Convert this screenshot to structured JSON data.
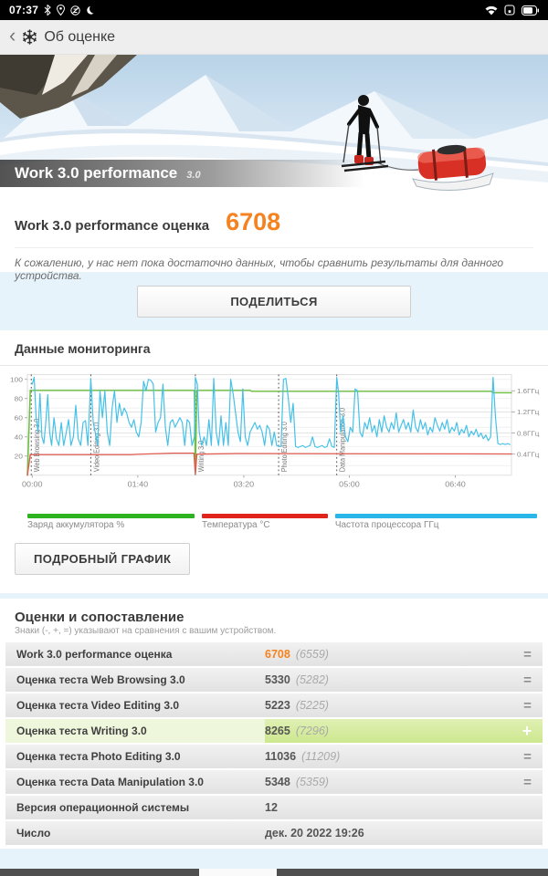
{
  "status_bar": {
    "time": "07:37",
    "left_icons": [
      "bluetooth-icon",
      "location-icon",
      "mute-icon",
      "night-mode-icon"
    ],
    "right_icons": [
      "wifi-icon",
      "sim-icon",
      "battery-icon"
    ]
  },
  "app_bar": {
    "back": "‹",
    "title": "Об оценке"
  },
  "banner": {
    "title": "Work 3.0 performance",
    "version": "3.0"
  },
  "score": {
    "label": "Work 3.0 performance оценка",
    "value": "6708",
    "note": "К сожалению, у нас нет пока достаточно данных, чтобы сравнить результаты для данного устройства."
  },
  "share_button": "ПОДЕЛИТЬСЯ",
  "monitoring": {
    "title": "Данные мониторинга",
    "detail_button": "ПОДРОБНЫЙ ГРАФИК",
    "legend": [
      {
        "label": "Заряд аккумулятора %",
        "color": "#2db31f",
        "grow": 170
      },
      {
        "label": "Температура °C",
        "color": "#e0241c",
        "grow": 140
      },
      {
        "label": "Частота процессора ГГц",
        "color": "#29b6e8",
        "grow": 238
      }
    ]
  },
  "chart_data": {
    "type": "line",
    "title": "Данные мониторинга",
    "x_ticks": [
      "00:00",
      "01:40",
      "03:20",
      "05:00",
      "06:40"
    ],
    "x_tick_pos": [
      10,
      228,
      447,
      665,
      884
    ],
    "y_left": {
      "ticks": [
        20,
        40,
        60,
        80,
        100
      ],
      "range": [
        0,
        105
      ]
    },
    "y_right": {
      "labels": [
        "0.4ГГц",
        "0.8ГГц",
        "1.2ГГц",
        "1.6ГГц"
      ],
      "values": [
        22,
        44,
        66,
        88
      ]
    },
    "phases": [
      {
        "label": "Web Browsing 3.0",
        "x": 8
      },
      {
        "label": "Video Editing 3.0",
        "x": 131
      },
      {
        "label": "Writing 3.0",
        "x": 347
      },
      {
        "label": "Photo Editing 3.0",
        "x": 519
      },
      {
        "label": "Data Manipulation 3.0",
        "x": 639
      }
    ],
    "series": [
      {
        "name": "Заряд аккумулятора %",
        "color": "#6cbf3f",
        "width": 1.5,
        "points": [
          0,
          0,
          6,
          88.5,
          345,
          88.5,
          347,
          3,
          350,
          88.5,
          460,
          88.5,
          463,
          87.5,
          958,
          87.5,
          962,
          86,
          1000,
          86
        ]
      },
      {
        "name": "Температура °C",
        "color": "#e15b50",
        "width": 1.4,
        "points": [
          0,
          0,
          6,
          21.5,
          215,
          21.5,
          225,
          21.8,
          300,
          23,
          344,
          23,
          347,
          1,
          350,
          22,
          430,
          22.6,
          1000,
          22.2
        ]
      },
      {
        "name": "Частота процессора ГГц",
        "color": "#45c1e8",
        "width": 1.2,
        "points": [
          10,
          95,
          14,
          102,
          18,
          60,
          22,
          45,
          26,
          85,
          30,
          40,
          34,
          33,
          38,
          55,
          42,
          84,
          46,
          45,
          50,
          31,
          55,
          60,
          60,
          38,
          65,
          31,
          70,
          55,
          75,
          31,
          80,
          44,
          85,
          58,
          90,
          31,
          95,
          40,
          100,
          73,
          105,
          38,
          110,
          31,
          115,
          55,
          120,
          57,
          125,
          31,
          131,
          101,
          136,
          55,
          140,
          45,
          145,
          31,
          150,
          88,
          155,
          60,
          160,
          88,
          165,
          45,
          170,
          31,
          175,
          70,
          180,
          88,
          185,
          55,
          190,
          75,
          195,
          62,
          200,
          70,
          205,
          65,
          210,
          55,
          215,
          50,
          220,
          58,
          225,
          45,
          230,
          40,
          235,
          55,
          240,
          98,
          245,
          88,
          250,
          100,
          255,
          99,
          260,
          95,
          265,
          45,
          270,
          55,
          275,
          60,
          280,
          95,
          285,
          50,
          290,
          31,
          295,
          55,
          300,
          58,
          305,
          50,
          310,
          55,
          315,
          60,
          320,
          55,
          325,
          31,
          330,
          58,
          335,
          55,
          340,
          31,
          345,
          40,
          347,
          102,
          351,
          95,
          355,
          45,
          360,
          31,
          365,
          40,
          370,
          31,
          375,
          58,
          380,
          31,
          385,
          101,
          390,
          45,
          395,
          31,
          400,
          62,
          405,
          31,
          410,
          55,
          415,
          31,
          420,
          100,
          425,
          85,
          430,
          65,
          435,
          45,
          440,
          35,
          445,
          90,
          450,
          40,
          455,
          31,
          460,
          45,
          465,
          50,
          470,
          55,
          475,
          48,
          480,
          52,
          485,
          45,
          490,
          31,
          495,
          52,
          500,
          48,
          505,
          31,
          510,
          45,
          515,
          31,
          519,
          30,
          524,
          30,
          529,
          100,
          534,
          101,
          539,
          80,
          544,
          55,
          549,
          75,
          554,
          30,
          559,
          29,
          564,
          30,
          569,
          31,
          574,
          29,
          579,
          30,
          584,
          31,
          589,
          40,
          594,
          30,
          599,
          29,
          604,
          30,
          609,
          31,
          614,
          29,
          619,
          30,
          624,
          38,
          629,
          30,
          634,
          29,
          639,
          102,
          643,
          85,
          647,
          45,
          652,
          62,
          657,
          40,
          662,
          35,
          667,
          50,
          672,
          45,
          677,
          90,
          682,
          88,
          687,
          45,
          692,
          40,
          697,
          55,
          702,
          48,
          707,
          60,
          712,
          45,
          717,
          52,
          722,
          40,
          727,
          58,
          732,
          45,
          737,
          62,
          742,
          50,
          747,
          45,
          752,
          55,
          757,
          48,
          762,
          65,
          767,
          45,
          772,
          52,
          777,
          58,
          782,
          48,
          787,
          55,
          792,
          45,
          797,
          68,
          802,
          50,
          807,
          45,
          812,
          58,
          817,
          48,
          822,
          55,
          827,
          42,
          832,
          50,
          837,
          45,
          842,
          60,
          847,
          52,
          852,
          46,
          857,
          55,
          862,
          48,
          867,
          58,
          872,
          44,
          877,
          50,
          882,
          46,
          887,
          55,
          892,
          42,
          897,
          48,
          902,
          44,
          907,
          52,
          912,
          40,
          917,
          46,
          922,
          42,
          927,
          48,
          932,
          40,
          937,
          44,
          942,
          38,
          947,
          42,
          952,
          36,
          957,
          40,
          962,
          102,
          967,
          60,
          972,
          33,
          977,
          32,
          982,
          33,
          987,
          32,
          992,
          33,
          997,
          32
        ]
      }
    ]
  },
  "comparison": {
    "title": "Оценки и сопоставление",
    "subtitle": "Знаки (-, +, =) указывают на сравнения с вашим устройством.",
    "rows": [
      {
        "label": "Work 3.0 performance оценка",
        "value": "6708",
        "compare": "(6559)",
        "badge": "=",
        "orange": true
      },
      {
        "label": "Оценка теста Web Browsing 3.0",
        "value": "5330",
        "compare": "(5282)",
        "badge": "="
      },
      {
        "label": "Оценка теста Video Editing 3.0",
        "value": "5223",
        "compare": "(5225)",
        "badge": "="
      },
      {
        "label": "Оценка теста Writing 3.0",
        "value": "8265",
        "compare": "(7296)",
        "badge": "+",
        "highlight": true
      },
      {
        "label": "Оценка теста Photo Editing 3.0",
        "value": "11036",
        "compare": "(11209)",
        "badge": "="
      },
      {
        "label": "Оценка теста Data Manipulation 3.0",
        "value": "5348",
        "compare": "(5359)",
        "badge": "="
      },
      {
        "label": "Версия операционной системы",
        "value": "12",
        "plain": true
      },
      {
        "label": "Число",
        "value": "дек. 20 2022 19:26",
        "plain": true
      }
    ]
  },
  "colors": {
    "accent_orange": "#f5821f",
    "page_bg": "#e7f3fb",
    "highlight_green": "#cde78e",
    "chart_blue": "#45c1e8",
    "chart_red": "#e15b50",
    "chart_green": "#6cbf3f"
  }
}
